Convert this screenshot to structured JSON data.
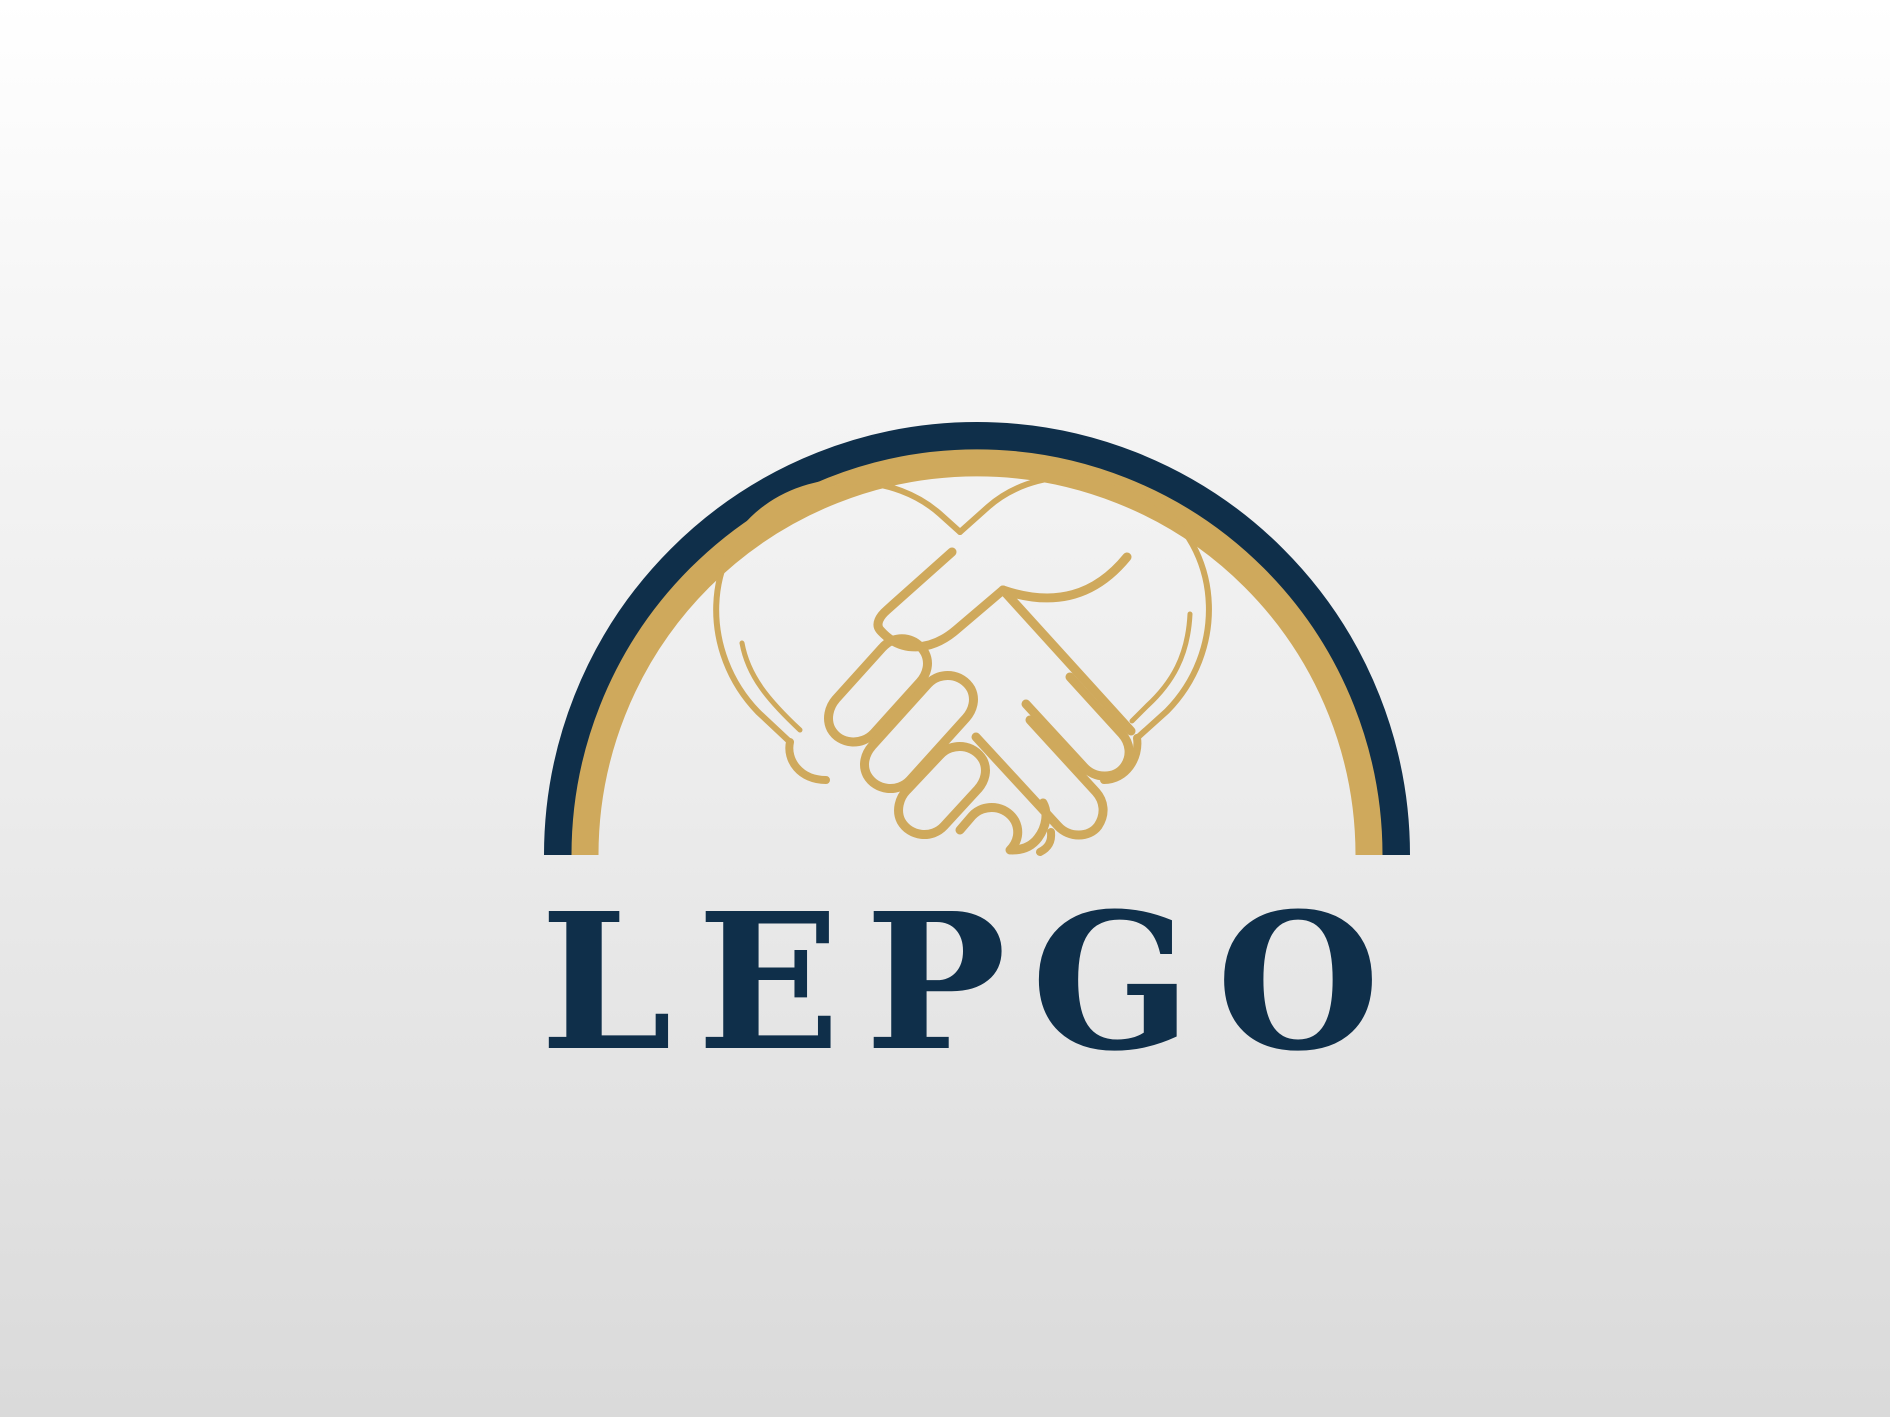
{
  "brand": {
    "name": "LEPGO",
    "letters": [
      "L",
      "E",
      "P",
      "G",
      "O"
    ]
  },
  "logo": {
    "icon": "handshake-heart-icon",
    "arc_icon": "half-circle-arc-icon"
  },
  "colors": {
    "navy": "#0f2f4a",
    "gold": "#cfa95c",
    "background_top": "#ffffff",
    "background_bottom": "#dadada"
  }
}
